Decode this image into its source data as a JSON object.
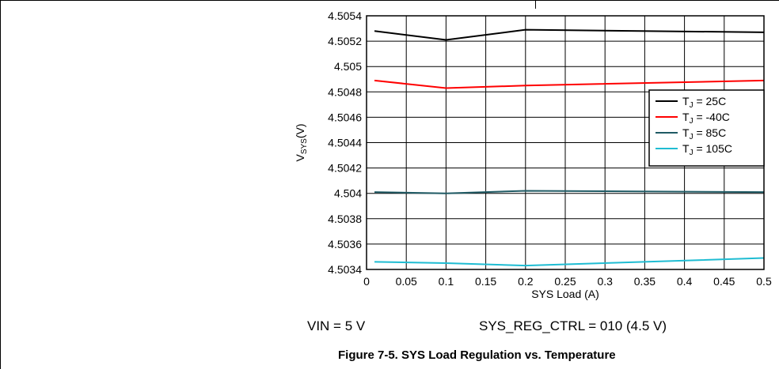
{
  "chart_data": {
    "type": "line",
    "xlabel": "SYS Load (A)",
    "ylabel_main": "V",
    "ylabel_sub": "SYS",
    "ylabel_unit": "(V)",
    "xlim": [
      0,
      0.5
    ],
    "ylim": [
      4.5034,
      4.5054
    ],
    "xticks": [
      "0",
      "0.05",
      "0.1",
      "0.15",
      "0.2",
      "0.25",
      "0.3",
      "0.35",
      "0.4",
      "0.45",
      "0.5"
    ],
    "yticks": [
      "4.5034",
      "4.5036",
      "4.5038",
      "4.504",
      "4.5042",
      "4.5044",
      "4.5046",
      "4.5048",
      "4.505",
      "4.5052",
      "4.5054"
    ],
    "grid": true,
    "legend_position": "right",
    "series": [
      {
        "name_main": "T",
        "name_sub": "J",
        "name_rest": " = 25C",
        "color": "#000000",
        "x": [
          0.01,
          0.1,
          0.2,
          0.5
        ],
        "y": [
          4.50528,
          4.50521,
          4.50529,
          4.50527
        ]
      },
      {
        "name_main": "T",
        "name_sub": "J",
        "name_rest": " = -40C",
        "color": "#ff0000",
        "x": [
          0.01,
          0.1,
          0.2,
          0.5
        ],
        "y": [
          4.50489,
          4.50483,
          4.50485,
          4.50489
        ]
      },
      {
        "name_main": "T",
        "name_sub": "J",
        "name_rest": " = 85C",
        "color": "#1f5a64",
        "x": [
          0.01,
          0.1,
          0.2,
          0.5
        ],
        "y": [
          4.50401,
          4.504,
          4.50402,
          4.50401
        ]
      },
      {
        "name_main": "T",
        "name_sub": "J",
        "name_rest": " = 105C",
        "color": "#1fbcd2",
        "x": [
          0.01,
          0.1,
          0.2,
          0.5
        ],
        "y": [
          4.50346,
          4.50345,
          4.50343,
          4.50349
        ]
      }
    ]
  },
  "notes": {
    "vin": "VIN = 5 V",
    "sys_reg": "SYS_REG_CTRL = 010 (4.5 V)"
  },
  "caption": "Figure 7-5. SYS Load Regulation vs. Temperature"
}
